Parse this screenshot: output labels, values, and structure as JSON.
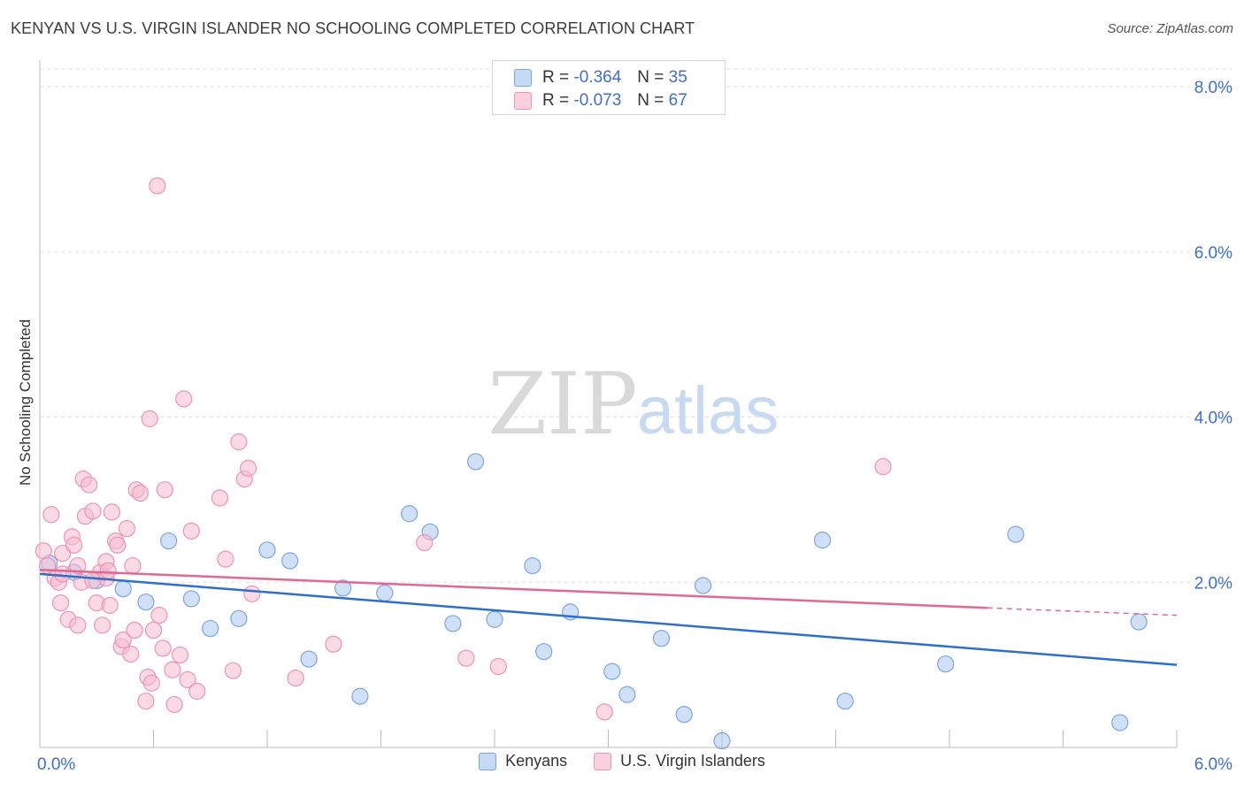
{
  "header": {
    "title": "KENYAN VS U.S. VIRGIN ISLANDER NO SCHOOLING COMPLETED CORRELATION CHART",
    "source": "Source: ZipAtlas.com"
  },
  "watermark": {
    "zip": "ZIP",
    "atlas": "atlas"
  },
  "legend_top": {
    "rows": [
      {
        "r_label": "R =",
        "r_value": "-0.364",
        "n_label": "N =",
        "n_value": "35"
      },
      {
        "r_label": "R =",
        "r_value": "-0.073",
        "n_label": "N =",
        "n_value": "67"
      }
    ]
  },
  "legend_bottom": {
    "items": [
      "Kenyans",
      "U.S. Virgin Islanders"
    ]
  },
  "colors": {
    "blue_fill": "#aac8f0",
    "blue_stroke": "#7aa6e0",
    "blue_line": "#2f6fcc",
    "pink_fill": "#f8bcd0",
    "pink_stroke": "#ee93b2",
    "pink_line": "#e06893",
    "axis_text": "#3d6fcf"
  },
  "chart_data": {
    "type": "scatter",
    "title": "KENYAN VS U.S. VIRGIN ISLANDER NO SCHOOLING COMPLETED CORRELATION CHART",
    "xlabel": "",
    "ylabel": "No Schooling Completed",
    "xlim": [
      0,
      6
    ],
    "ylim": [
      0,
      8.3
    ],
    "x_tick_labels": [
      "0.0%",
      "6.0%"
    ],
    "y_ticks": [
      2,
      4,
      6,
      8
    ],
    "y_tick_labels": [
      "2.0%",
      "4.0%",
      "6.0%",
      "8.0%"
    ],
    "grid": true,
    "legend_position": "bottom",
    "series": [
      {
        "name": "Kenyans",
        "points": [
          [
            0.05,
            2.23
          ],
          [
            0.18,
            2.12
          ],
          [
            0.3,
            2.02
          ],
          [
            0.44,
            1.92
          ],
          [
            0.56,
            1.76
          ],
          [
            0.68,
            2.5
          ],
          [
            0.8,
            1.8
          ],
          [
            0.9,
            1.44
          ],
          [
            1.05,
            1.56
          ],
          [
            1.2,
            2.39
          ],
          [
            1.32,
            2.26
          ],
          [
            1.42,
            1.07
          ],
          [
            1.6,
            1.93
          ],
          [
            1.69,
            0.62
          ],
          [
            1.82,
            1.87
          ],
          [
            1.95,
            2.83
          ],
          [
            2.06,
            2.61
          ],
          [
            2.18,
            1.5
          ],
          [
            2.3,
            3.46
          ],
          [
            2.4,
            1.55
          ],
          [
            2.6,
            2.2
          ],
          [
            2.66,
            1.16
          ],
          [
            2.8,
            1.64
          ],
          [
            3.02,
            0.92
          ],
          [
            3.1,
            0.64
          ],
          [
            3.28,
            1.32
          ],
          [
            3.4,
            0.4
          ],
          [
            3.5,
            1.96
          ],
          [
            3.6,
            0.08
          ],
          [
            4.13,
            2.51
          ],
          [
            4.25,
            0.56
          ],
          [
            4.78,
            1.01
          ],
          [
            5.15,
            2.58
          ],
          [
            5.7,
            0.3
          ],
          [
            5.8,
            1.52
          ]
        ]
      },
      {
        "name": "U.S. Virgin Islanders",
        "points": [
          [
            0.02,
            2.38
          ],
          [
            0.04,
            2.2
          ],
          [
            0.06,
            2.82
          ],
          [
            0.08,
            2.05
          ],
          [
            0.1,
            2.0
          ],
          [
            0.11,
            1.75
          ],
          [
            0.12,
            2.35
          ],
          [
            0.15,
            1.55
          ],
          [
            0.17,
            2.55
          ],
          [
            0.18,
            2.45
          ],
          [
            0.2,
            1.48
          ],
          [
            0.22,
            2.0
          ],
          [
            0.23,
            3.25
          ],
          [
            0.24,
            2.8
          ],
          [
            0.26,
            3.18
          ],
          [
            0.28,
            2.86
          ],
          [
            0.3,
            1.75
          ],
          [
            0.32,
            2.12
          ],
          [
            0.33,
            1.48
          ],
          [
            0.35,
            2.05
          ],
          [
            0.35,
            2.25
          ],
          [
            0.37,
            1.72
          ],
          [
            0.38,
            2.85
          ],
          [
            0.4,
            2.5
          ],
          [
            0.41,
            2.45
          ],
          [
            0.43,
            1.22
          ],
          [
            0.44,
            1.3
          ],
          [
            0.46,
            2.65
          ],
          [
            0.48,
            1.13
          ],
          [
            0.49,
            2.2
          ],
          [
            0.5,
            1.42
          ],
          [
            0.51,
            3.12
          ],
          [
            0.53,
            3.08
          ],
          [
            0.56,
            0.56
          ],
          [
            0.57,
            0.85
          ],
          [
            0.58,
            3.98
          ],
          [
            0.59,
            0.78
          ],
          [
            0.6,
            1.42
          ],
          [
            0.62,
            6.8
          ],
          [
            0.63,
            1.6
          ],
          [
            0.65,
            1.2
          ],
          [
            0.66,
            3.12
          ],
          [
            0.7,
            0.94
          ],
          [
            0.71,
            0.52
          ],
          [
            0.74,
            1.12
          ],
          [
            0.76,
            4.22
          ],
          [
            0.78,
            0.82
          ],
          [
            0.8,
            2.62
          ],
          [
            0.83,
            0.68
          ],
          [
            0.95,
            3.02
          ],
          [
            0.98,
            2.28
          ],
          [
            1.02,
            0.93
          ],
          [
            1.05,
            3.7
          ],
          [
            1.08,
            3.25
          ],
          [
            1.1,
            3.38
          ],
          [
            1.12,
            1.86
          ],
          [
            1.35,
            0.84
          ],
          [
            1.55,
            1.25
          ],
          [
            2.03,
            2.48
          ],
          [
            2.25,
            1.08
          ],
          [
            2.42,
            0.98
          ],
          [
            2.98,
            0.43
          ],
          [
            4.45,
            3.4
          ],
          [
            0.12,
            2.1
          ],
          [
            0.2,
            2.2
          ],
          [
            0.28,
            2.02
          ],
          [
            0.36,
            2.14
          ]
        ]
      }
    ],
    "trend_lines": [
      {
        "series": "Kenyans",
        "from": [
          0,
          2.1
        ],
        "to": [
          6,
          1.0
        ],
        "style": "solid"
      },
      {
        "series": "U.S. Virgin Islanders",
        "from": [
          0,
          2.15
        ],
        "to": [
          5.0,
          1.69
        ],
        "style": "solid"
      },
      {
        "series": "U.S. Virgin Islanders",
        "from": [
          5.0,
          1.69
        ],
        "to": [
          6.0,
          1.6
        ],
        "style": "dashed"
      }
    ]
  }
}
